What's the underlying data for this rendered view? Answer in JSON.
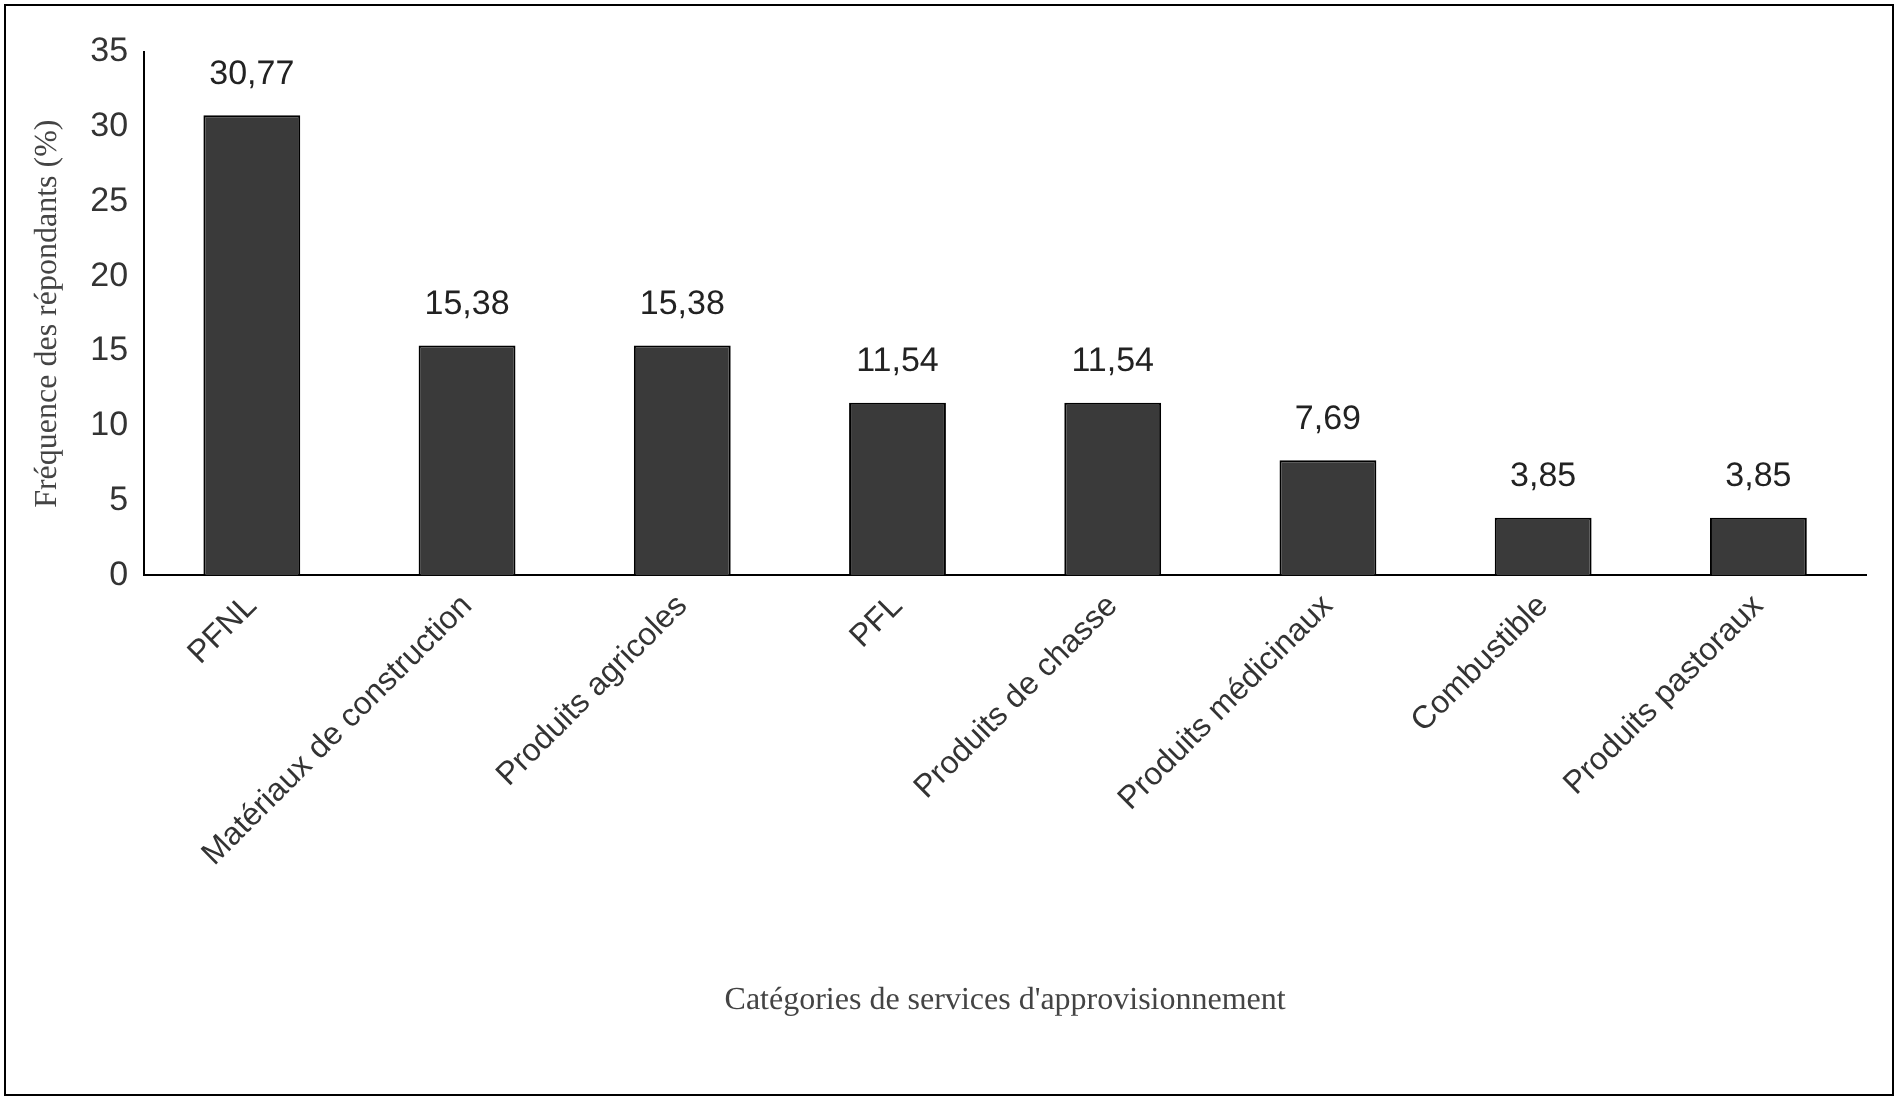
{
  "chart_data": {
    "type": "bar",
    "xlabel": "Catégories de services d'approvisionnement",
    "ylabel": "Fréquence des répondants (%)",
    "categories": [
      "PFNL",
      "Matériaux de construction",
      "Produits agricoles",
      "PFL",
      "Produits de chasse",
      "Produits médicinaux",
      "Combustible",
      "Produits pastoraux"
    ],
    "values": [
      30.77,
      15.38,
      15.38,
      11.54,
      11.54,
      7.69,
      3.85,
      3.85
    ],
    "value_labels": [
      "30,77",
      "15,38",
      "15,38",
      "11,54",
      "11,54",
      "7,69",
      "3,85",
      "3,85"
    ],
    "color": "#3a3a3a",
    "ylim": [
      0,
      35
    ],
    "yticks": [
      0,
      5,
      10,
      15,
      20,
      25,
      30,
      35
    ],
    "grid": false,
    "legend": false
  }
}
